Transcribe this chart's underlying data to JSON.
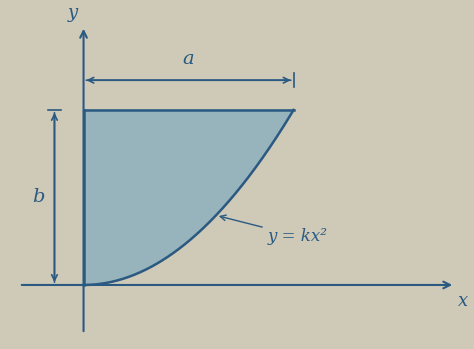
{
  "background_color": "#cfc9b8",
  "fill_color": "#7aa8be",
  "fill_alpha": 0.65,
  "line_color": "#2a5a82",
  "axis_color": "#2a5a82",
  "arrow_color": "#2a5a82",
  "label_a": "a",
  "label_b": "b",
  "label_curve": "y = kx²",
  "label_x": "x",
  "label_y": "y",
  "figsize": [
    4.74,
    3.49
  ],
  "dpi": 100,
  "xlim": [
    -0.5,
    2.4
  ],
  "ylim": [
    -0.35,
    1.55
  ],
  "a_val": 1.3,
  "b_val": 1.0
}
